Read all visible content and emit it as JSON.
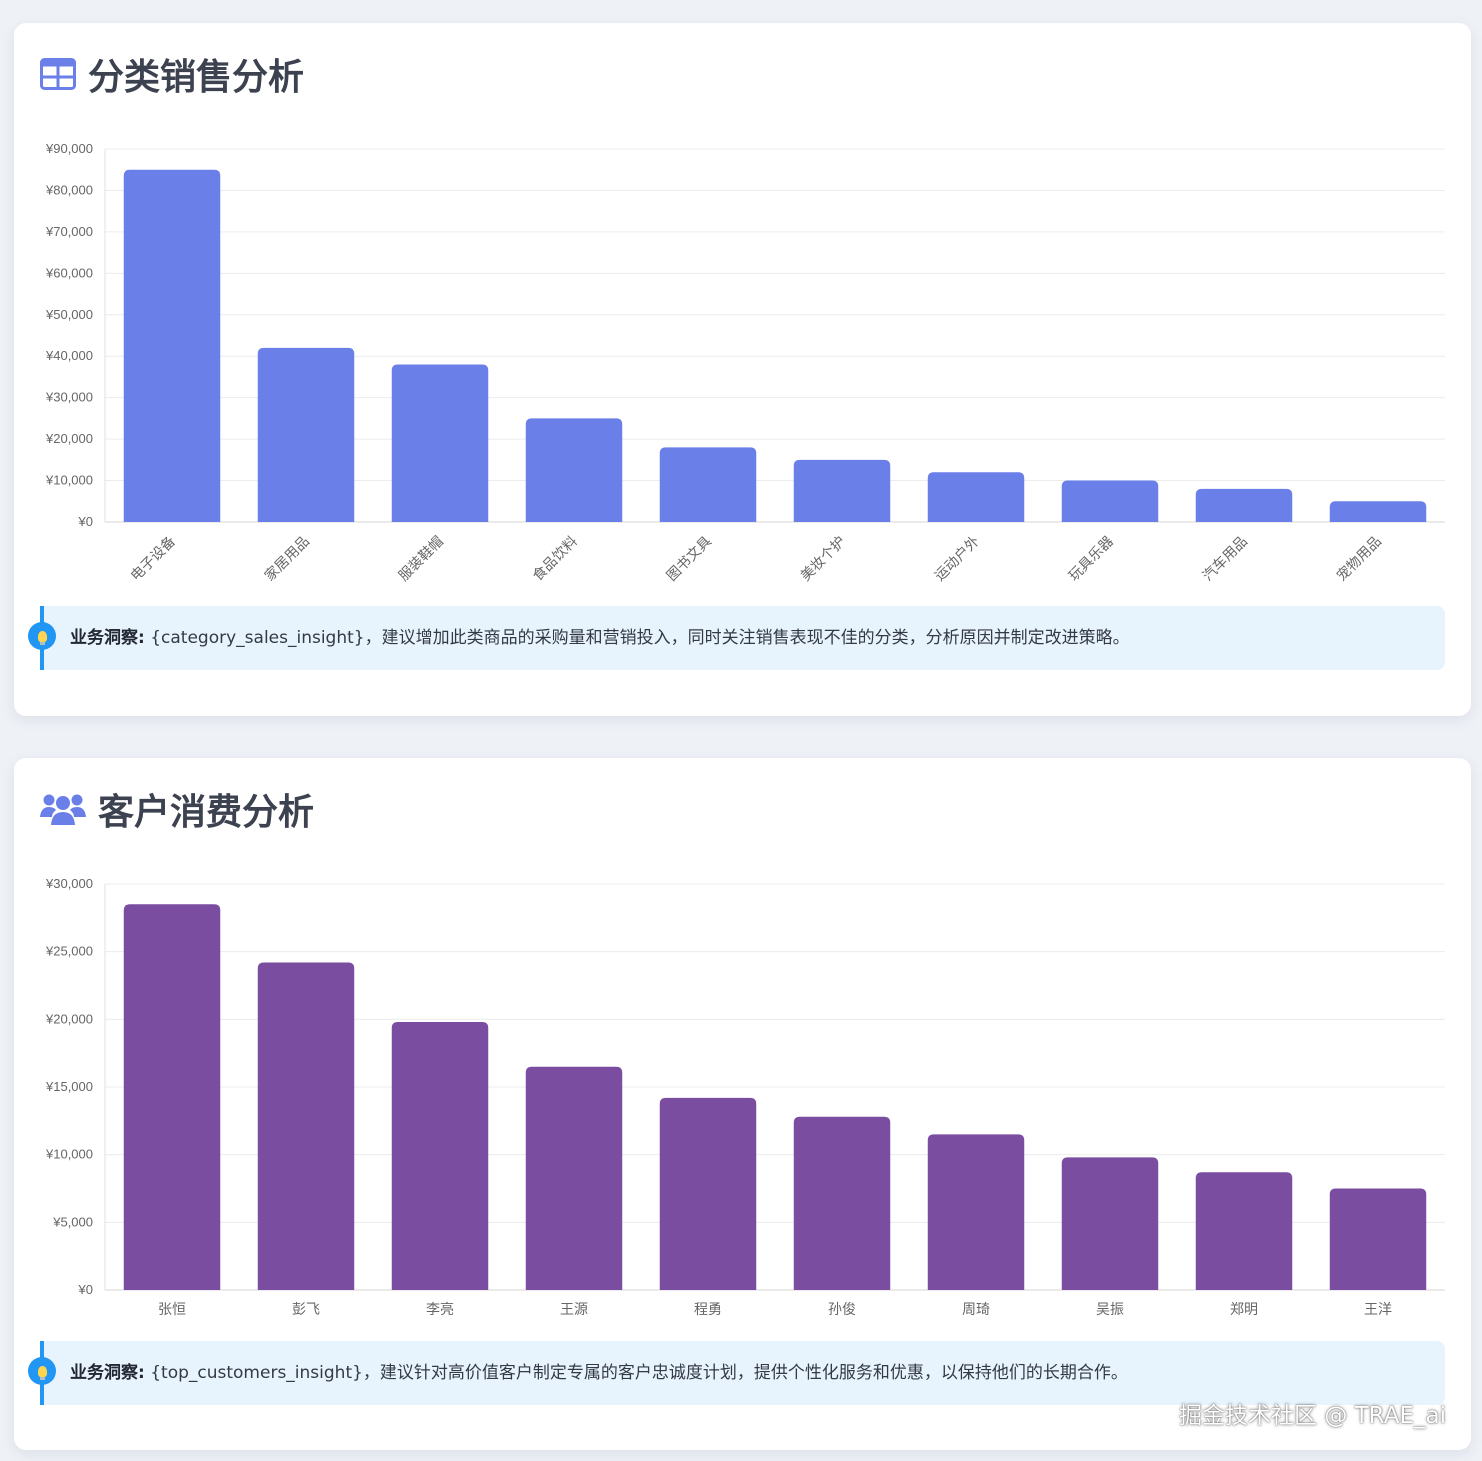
{
  "sections": [
    {
      "title": "分类销售分析",
      "icon": "grid-icon",
      "insight_label": "业务洞察:",
      "insight_text": "{category_sales_insight}，建议增加此类商品的采购量和营销投入，同时关注销售表现不佳的分类，分析原因并制定改进策略。"
    },
    {
      "title": "客户消费分析",
      "icon": "users-icon",
      "insight_label": "业务洞察:",
      "insight_text": "{top_customers_insight}，建议针对高价值客户制定专属的客户忠诚度计划，提供个性化服务和优惠，以保持他们的长期合作。"
    }
  ],
  "watermark": "掘金技术社区 @ TRAE_ai",
  "colors": {
    "category_bar": "#6a7fe8",
    "customer_bar": "#7a4da1",
    "insight_bg": "#e7f3fd",
    "insight_border": "#2196f3",
    "grid": "#ececec",
    "tick_text": "#666666"
  },
  "chart_data": [
    {
      "type": "bar",
      "categories": [
        "电子设备",
        "家居用品",
        "服装鞋帽",
        "食品饮料",
        "图书文具",
        "美妆个护",
        "运动户外",
        "玩具乐器",
        "汽车用品",
        "宠物用品"
      ],
      "values": [
        85000,
        42000,
        38000,
        25000,
        18000,
        15000,
        12000,
        10000,
        8000,
        5000
      ],
      "ylim": [
        0,
        90000
      ],
      "yticks": [
        "¥0",
        "¥10,000",
        "¥20,000",
        "¥30,000",
        "¥40,000",
        "¥50,000",
        "¥60,000",
        "¥70,000",
        "¥80,000",
        "¥90,000"
      ],
      "xlabel_rotated": true,
      "grid": true,
      "legend": "none"
    },
    {
      "type": "bar",
      "categories": [
        "张恒",
        "彭飞",
        "李亮",
        "王源",
        "程勇",
        "孙俊",
        "周琦",
        "吴振",
        "郑明",
        "王洋"
      ],
      "values": [
        28500,
        24200,
        19800,
        16500,
        14200,
        12800,
        11500,
        9800,
        8700,
        7500
      ],
      "ylim": [
        0,
        30000
      ],
      "yticks": [
        "¥0",
        "¥5,000",
        "¥10,000",
        "¥15,000",
        "¥20,000",
        "¥25,000",
        "¥30,000"
      ],
      "xlabel_rotated": false,
      "grid": true,
      "legend": "none"
    }
  ]
}
